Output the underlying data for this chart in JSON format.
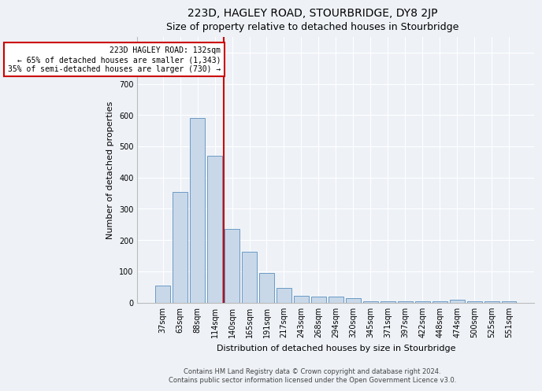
{
  "title": "223D, HAGLEY ROAD, STOURBRIDGE, DY8 2JP",
  "subtitle": "Size of property relative to detached houses in Stourbridge",
  "xlabel": "Distribution of detached houses by size in Stourbridge",
  "ylabel": "Number of detached properties",
  "footer_line1": "Contains HM Land Registry data © Crown copyright and database right 2024.",
  "footer_line2": "Contains public sector information licensed under the Open Government Licence v3.0.",
  "categories": [
    "37sqm",
    "63sqm",
    "88sqm",
    "114sqm",
    "140sqm",
    "165sqm",
    "191sqm",
    "217sqm",
    "243sqm",
    "268sqm",
    "294sqm",
    "320sqm",
    "345sqm",
    "371sqm",
    "397sqm",
    "422sqm",
    "448sqm",
    "474sqm",
    "500sqm",
    "525sqm",
    "551sqm"
  ],
  "values": [
    55,
    355,
    590,
    470,
    235,
    163,
    95,
    46,
    21,
    20,
    20,
    14,
    5,
    5,
    5,
    5,
    5,
    8,
    5,
    5,
    5
  ],
  "bar_color": "#c8d8e8",
  "bar_edge_color": "#5a8fc0",
  "ref_line_index": 4,
  "annotation_line1": "223D HAGLEY ROAD: 132sqm",
  "annotation_line2": "← 65% of detached houses are smaller (1,343)",
  "annotation_line3": "35% of semi-detached houses are larger (730) →",
  "annotation_box_color": "#ffffff",
  "annotation_box_edge": "#cc0000",
  "ref_line_color": "#cc0000",
  "ylim": [
    0,
    850
  ],
  "yticks": [
    0,
    100,
    200,
    300,
    400,
    500,
    600,
    700,
    800
  ],
  "background_color": "#eef2f7",
  "plot_background": "#eef2f7",
  "title_fontsize": 10,
  "axis_fontsize": 8,
  "tick_fontsize": 7
}
